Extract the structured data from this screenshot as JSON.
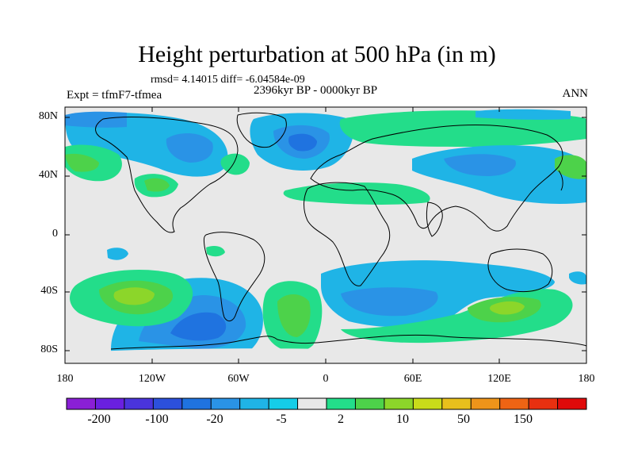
{
  "title": "Height perturbation at 500 hPa (in m)",
  "stats": "rmsd= 4.14015 diff= -6.04584e-09",
  "experiment": "Expt = tfmF7-tfmea",
  "period": "2396kyr BP - 0000kyr BP",
  "season": "ANN",
  "map": {
    "lat_labels": [
      "80N",
      "40N",
      "0",
      "40S",
      "80S"
    ],
    "lon_labels": [
      "180",
      "120W",
      "60W",
      "0",
      "60E",
      "120E",
      "180"
    ]
  },
  "colorbar": {
    "colors": [
      "#8a1fd6",
      "#6a20e0",
      "#4a34dc",
      "#2c50dc",
      "#1f73e0",
      "#2a93e6",
      "#1fb4e6",
      "#15cde8",
      "#e8e8e8",
      "#23dd8a",
      "#4dd24a",
      "#8cd62a",
      "#c9dc1a",
      "#e8c01c",
      "#ee941a",
      "#ef6414",
      "#e83010",
      "#e00a0a"
    ],
    "tick_labels": [
      "-200",
      "-100",
      "-20",
      "-5",
      "2",
      "10",
      "50",
      "150"
    ]
  }
}
